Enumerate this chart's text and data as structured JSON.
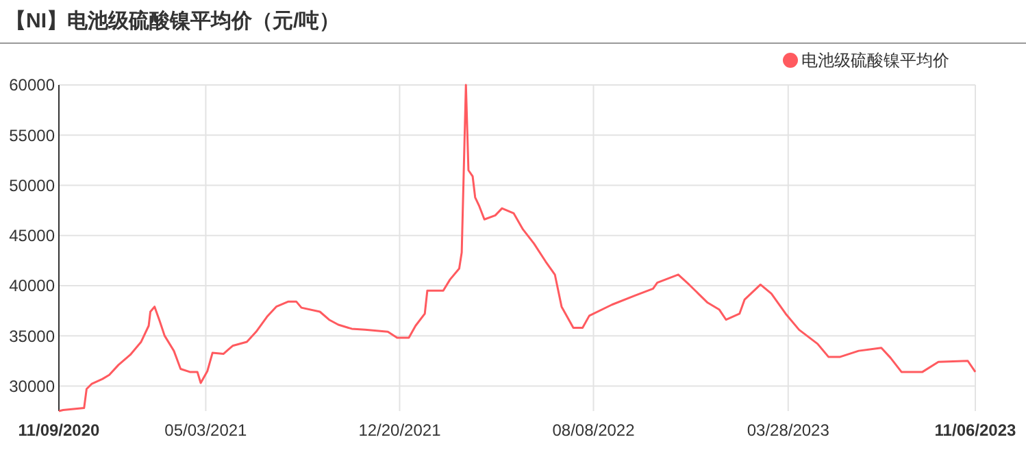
{
  "chart_data": {
    "type": "line",
    "title": "【NI】电池级硫酸镍平均价（元/吨）",
    "xlim": [
      "2020-11-09",
      "2023-11-06"
    ],
    "xticks": [
      {
        "value": "2020-11-09",
        "label": "11/09/2020"
      },
      {
        "value": "2021-05-03",
        "label": "05/03/2021"
      },
      {
        "value": "2021-12-20",
        "label": "12/20/2021"
      },
      {
        "value": "2022-08-08",
        "label": "08/08/2022"
      },
      {
        "value": "2023-03-28",
        "label": "03/28/2023"
      },
      {
        "value": "2023-11-06",
        "label": "11/06/2023"
      }
    ],
    "ylim": [
      27500,
      60000
    ],
    "yticks": [
      30000,
      35000,
      40000,
      45000,
      50000,
      55000,
      60000
    ],
    "grid": true,
    "legend": "top right",
    "series": [
      {
        "name": "电池级硫酸镍平均价",
        "color": "#ff5a5f",
        "x": [
          "2020-11-09",
          "2020-11-14",
          "2020-12-09",
          "2020-12-12",
          "2020-12-18",
          "2020-12-31",
          "2021-01-08",
          "2021-01-19",
          "2021-02-02",
          "2021-02-15",
          "2021-02-24",
          "2021-02-26",
          "2021-03-03",
          "2021-03-09",
          "2021-03-15",
          "2021-03-26",
          "2021-04-03",
          "2021-04-14",
          "2021-04-23",
          "2021-04-27",
          "2021-05-05",
          "2021-05-11",
          "2021-05-24",
          "2021-06-04",
          "2021-06-21",
          "2021-07-02",
          "2021-07-15",
          "2021-07-26",
          "2021-08-09",
          "2021-08-19",
          "2021-08-25",
          "2021-09-16",
          "2021-09-27",
          "2021-10-08",
          "2021-10-24",
          "2021-11-09",
          "2021-12-06",
          "2021-12-17",
          "2021-12-31",
          "2022-01-08",
          "2022-01-19",
          "2022-01-22",
          "2022-02-10",
          "2022-02-18",
          "2022-03-01",
          "2022-03-04",
          "2022-03-09",
          "2022-03-12",
          "2022-03-17",
          "2022-03-20",
          "2022-03-25",
          "2022-03-31",
          "2022-04-13",
          "2022-04-21",
          "2022-05-05",
          "2022-05-16",
          "2022-05-29",
          "2022-06-12",
          "2022-06-23",
          "2022-07-01",
          "2022-07-15",
          "2022-07-26",
          "2022-08-03",
          "2022-08-30",
          "2022-09-26",
          "2022-10-18",
          "2022-10-23",
          "2022-11-17",
          "2022-11-30",
          "2022-12-22",
          "2023-01-05",
          "2023-01-13",
          "2023-01-29",
          "2023-02-04",
          "2023-02-23",
          "2023-03-08",
          "2023-03-25",
          "2023-04-10",
          "2023-05-02",
          "2023-05-15",
          "2023-05-29",
          "2023-06-20",
          "2023-07-17",
          "2023-07-28",
          "2023-08-10",
          "2023-09-04",
          "2023-09-23",
          "2023-10-28",
          "2023-11-06"
        ],
        "values": [
          27500,
          27600,
          27800,
          29700,
          30200,
          30700,
          31100,
          32100,
          33100,
          34400,
          36000,
          37400,
          37900,
          36500,
          35000,
          33500,
          31700,
          31400,
          31400,
          30300,
          31500,
          33300,
          33200,
          34000,
          34400,
          35400,
          36900,
          37900,
          38400,
          38400,
          37800,
          37400,
          36600,
          36100,
          35700,
          35600,
          35400,
          34800,
          34800,
          36000,
          37200,
          39500,
          39500,
          40600,
          41700,
          43300,
          60000,
          51500,
          50900,
          48800,
          47900,
          46600,
          47000,
          47700,
          47200,
          45600,
          44200,
          42400,
          41100,
          37900,
          35800,
          35800,
          37000,
          38100,
          39000,
          39700,
          40300,
          41100,
          40100,
          38300,
          37600,
          36600,
          37200,
          38600,
          40100,
          39200,
          37200,
          35600,
          34200,
          32900,
          32900,
          33500,
          33800,
          32800,
          31400,
          31400,
          32400,
          32500,
          31400
        ]
      }
    ]
  }
}
